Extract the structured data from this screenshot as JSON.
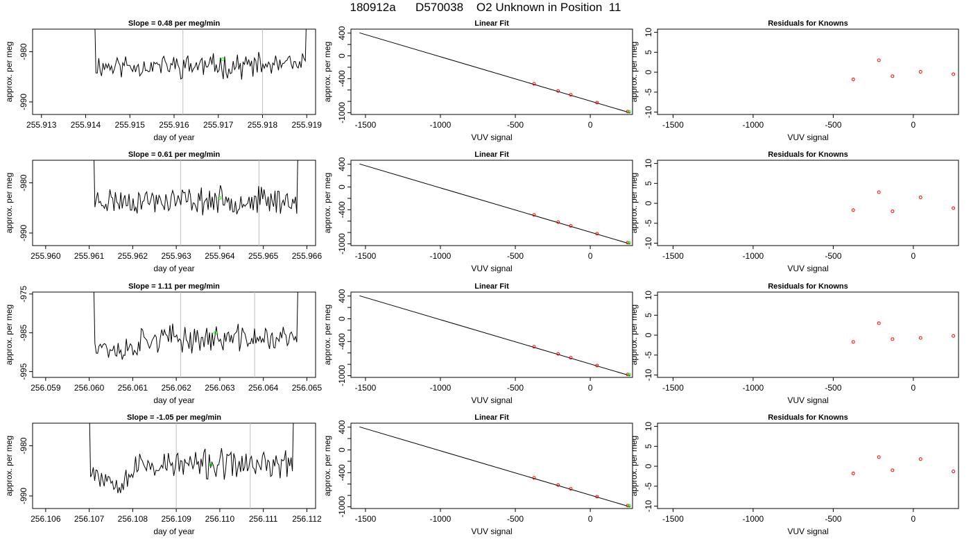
{
  "figure": {
    "title": "180912a      D570038    O2 Unknown in Position  11"
  },
  "chart_data": [
    {
      "type": "line",
      "row": 0,
      "title": "Slope =  0.48  per meg/min",
      "xlabel": "day of year",
      "ylabel": "approx. per meg",
      "xlim": [
        255.9128,
        255.9192
      ],
      "ylim": [
        -992.5,
        -975.5
      ],
      "xticks": [
        255.913,
        255.914,
        255.915,
        255.916,
        255.917,
        255.918,
        255.919
      ],
      "xtick_labels": [
        "255.913",
        "255.914",
        "255.915",
        "255.916",
        "255.917",
        "255.918",
        "255.919"
      ],
      "yticks": [
        -980,
        -990
      ],
      "ytick_labels": [
        "-980",
        "-990"
      ],
      "vlines": [
        255.9162,
        255.918
      ],
      "x_start": 255.9142,
      "x_end": 255.919,
      "seed": 11,
      "level": -982.8,
      "amp": 1.8,
      "vshape": "base",
      "marker": {
        "x": 255.9171,
        "y": -981.5
      }
    },
    {
      "type": "scatter",
      "row": 0,
      "title": "Linear Fit",
      "xlabel": "VUV signal",
      "ylabel": "approx. per meg",
      "xlim": [
        -1597,
        282
      ],
      "ylim": [
        -1030,
        470
      ],
      "xticks": [
        -1500,
        -1000,
        -500,
        0
      ],
      "xtick_labels": [
        "-1500",
        "-1000",
        "-500",
        "0"
      ],
      "yticks": [
        400,
        0,
        -400,
        -1000
      ],
      "ytick_labels": [
        "400",
        "0",
        "-400",
        "-1000"
      ],
      "fit_line": {
        "x1": -1540,
        "y1": 405,
        "x2": 265,
        "y2": -1000
      },
      "points": [
        {
          "x": -375,
          "y": -491
        },
        {
          "x": -215,
          "y": -617
        },
        {
          "x": -130,
          "y": -684
        },
        {
          "x": 45,
          "y": -822
        },
        {
          "x": 250,
          "y": -980
        }
      ],
      "unknown": {
        "x": 260,
        "y": -982
      }
    },
    {
      "type": "scatter",
      "row": 0,
      "title": "Residuals for Knowns",
      "xlabel": "VUV signal",
      "ylabel": "approx. per meg",
      "xlim": [
        -1597,
        282
      ],
      "ylim": [
        -10.6,
        10.8
      ],
      "xticks": [
        -1500,
        -1000,
        -500,
        0
      ],
      "xtick_labels": [
        "-1500",
        "-1000",
        "-500",
        "0"
      ],
      "yticks": [
        10,
        5,
        0,
        -5,
        -10
      ],
      "ytick_labels": [
        "10",
        "5",
        "0",
        "-5",
        "-10"
      ],
      "points": [
        {
          "x": -375,
          "y": -1.8
        },
        {
          "x": -215,
          "y": 3.0
        },
        {
          "x": -130,
          "y": -1.0
        },
        {
          "x": 45,
          "y": 0.1
        },
        {
          "x": 250,
          "y": -0.5
        }
      ]
    },
    {
      "type": "line",
      "row": 1,
      "title": "Slope =  0.61  per meg/min",
      "xlabel": "day of year",
      "ylabel": "approx. per meg",
      "xlim": [
        255.9597,
        255.9662
      ],
      "ylim": [
        -992.5,
        -975.5
      ],
      "xticks": [
        255.96,
        255.961,
        255.962,
        255.963,
        255.964,
        255.965,
        255.966
      ],
      "xtick_labels": [
        "255.960",
        "255.961",
        "255.962",
        "255.963",
        "255.964",
        "255.965",
        "255.966"
      ],
      "yticks": [
        -980,
        -990
      ],
      "ytick_labels": [
        "-980",
        "-990"
      ],
      "vlines": [
        255.9631,
        255.9649
      ],
      "x_start": 255.9611,
      "x_end": 255.9658,
      "seed": 23,
      "level": -983.5,
      "amp": 2.0,
      "vshape": "base",
      "marker": {
        "x": 255.964,
        "y": -983.0
      }
    },
    {
      "type": "scatter",
      "row": 1,
      "title": "Linear Fit",
      "xlabel": "VUV signal",
      "ylabel": "approx. per meg",
      "xlim": [
        -1597,
        282
      ],
      "ylim": [
        -1030,
        470
      ],
      "xticks": [
        -1500,
        -1000,
        -500,
        0
      ],
      "xtick_labels": [
        "-1500",
        "-1000",
        "-500",
        "0"
      ],
      "yticks": [
        400,
        0,
        -400,
        -1000
      ],
      "ytick_labels": [
        "400",
        "0",
        "-400",
        "-1000"
      ],
      "fit_line": {
        "x1": -1540,
        "y1": 405,
        "x2": 265,
        "y2": -1000
      },
      "points": [
        {
          "x": -375,
          "y": -491
        },
        {
          "x": -215,
          "y": -617
        },
        {
          "x": -130,
          "y": -684
        },
        {
          "x": 45,
          "y": -822
        },
        {
          "x": 250,
          "y": -980
        }
      ],
      "unknown": {
        "x": 260,
        "y": -982
      }
    },
    {
      "type": "scatter",
      "row": 1,
      "title": "Residuals for Knowns",
      "xlabel": "VUV signal",
      "ylabel": "approx. per meg",
      "xlim": [
        -1597,
        282
      ],
      "ylim": [
        -10.6,
        10.8
      ],
      "xticks": [
        -1500,
        -1000,
        -500,
        0
      ],
      "xtick_labels": [
        "-1500",
        "-1000",
        "-500",
        "0"
      ],
      "yticks": [
        10,
        5,
        0,
        -5,
        -10
      ],
      "ytick_labels": [
        "10",
        "5",
        "0",
        "-5",
        "-10"
      ],
      "points": [
        {
          "x": -375,
          "y": -1.7
        },
        {
          "x": -215,
          "y": 2.8
        },
        {
          "x": -130,
          "y": -2.0
        },
        {
          "x": 45,
          "y": 1.5
        },
        {
          "x": 250,
          "y": -1.2
        }
      ]
    },
    {
      "type": "line",
      "row": 2,
      "title": "Slope =  1.11  per meg/min",
      "xlabel": "day of year",
      "ylabel": "approx. per meg",
      "xlim": [
        256.0587,
        256.0652
      ],
      "ylim": [
        -996.5,
        -974.5
      ],
      "xticks": [
        256.059,
        256.06,
        256.061,
        256.062,
        256.063,
        256.064,
        256.065
      ],
      "xtick_labels": [
        "256.059",
        "256.060",
        "256.061",
        "256.062",
        "256.063",
        "256.064",
        "256.065"
      ],
      "yticks": [
        -975,
        -985,
        -995
      ],
      "ytick_labels": [
        "-975",
        "-985",
        "-995"
      ],
      "vlines": [
        256.0621,
        256.0638
      ],
      "x_start": 256.0601,
      "x_end": 256.0648,
      "seed": 37,
      "level": -986.5,
      "amp": 2.6,
      "vshape": "dip",
      "marker": {
        "x": 256.0629,
        "y": -985.0
      }
    },
    {
      "type": "scatter",
      "row": 2,
      "title": "Linear Fit",
      "xlabel": "VUV signal",
      "ylabel": "approx. per meg",
      "xlim": [
        -1597,
        282
      ],
      "ylim": [
        -1030,
        470
      ],
      "xticks": [
        -1500,
        -1000,
        -500,
        0
      ],
      "xtick_labels": [
        "-1500",
        "-1000",
        "-500",
        "0"
      ],
      "yticks": [
        400,
        0,
        -400,
        -1000
      ],
      "ytick_labels": [
        "400",
        "0",
        "-400",
        "-1000"
      ],
      "fit_line": {
        "x1": -1540,
        "y1": 405,
        "x2": 265,
        "y2": -1000
      },
      "points": [
        {
          "x": -375,
          "y": -491
        },
        {
          "x": -215,
          "y": -617
        },
        {
          "x": -130,
          "y": -684
        },
        {
          "x": 45,
          "y": -822
        },
        {
          "x": 250,
          "y": -980
        }
      ],
      "unknown": {
        "x": 260,
        "y": -982
      }
    },
    {
      "type": "scatter",
      "row": 2,
      "title": "Residuals for Knowns",
      "xlabel": "VUV signal",
      "ylabel": "approx. per meg",
      "xlim": [
        -1597,
        282
      ],
      "ylim": [
        -10.6,
        10.8
      ],
      "xticks": [
        -1500,
        -1000,
        -500,
        0
      ],
      "xtick_labels": [
        "-1500",
        "-1000",
        "-500",
        "0"
      ],
      "yticks": [
        10,
        5,
        0,
        -5,
        -10
      ],
      "ytick_labels": [
        "10",
        "5",
        "0",
        "-5",
        "-10"
      ],
      "points": [
        {
          "x": -375,
          "y": -1.7
        },
        {
          "x": -215,
          "y": 3.0
        },
        {
          "x": -130,
          "y": -1.0
        },
        {
          "x": 45,
          "y": -0.7
        },
        {
          "x": 250,
          "y": -0.2
        }
      ]
    },
    {
      "type": "line",
      "row": 3,
      "title": "Slope =  -1.05  per meg/min",
      "xlabel": "day of year",
      "ylabel": "approx. per meg",
      "xlim": [
        256.1057,
        256.1122
      ],
      "ylim": [
        -992.5,
        -975.5
      ],
      "xticks": [
        256.106,
        256.107,
        256.108,
        256.109,
        256.11,
        256.111,
        256.112
      ],
      "xtick_labels": [
        "256.106",
        "256.107",
        "256.108",
        "256.109",
        "256.110",
        "256.111",
        "256.112"
      ],
      "yticks": [
        -980,
        -990
      ],
      "ytick_labels": [
        "-980",
        "-990"
      ],
      "vlines": [
        256.109,
        256.1107
      ],
      "x_start": 256.107,
      "x_end": 256.1117,
      "seed": 53,
      "level": -983.8,
      "amp": 2.2,
      "vshape": "dip",
      "marker": {
        "x": 256.1098,
        "y": -983.8
      }
    },
    {
      "type": "scatter",
      "row": 3,
      "title": "Linear Fit",
      "xlabel": "VUV signal",
      "ylabel": "approx. per meg",
      "xlim": [
        -1597,
        282
      ],
      "ylim": [
        -1030,
        470
      ],
      "xticks": [
        -1500,
        -1000,
        -500,
        0
      ],
      "xtick_labels": [
        "-1500",
        "-1000",
        "-500",
        "0"
      ],
      "yticks": [
        400,
        0,
        -400,
        -1000
      ],
      "ytick_labels": [
        "400",
        "0",
        "-400",
        "-1000"
      ],
      "fit_line": {
        "x1": -1540,
        "y1": 405,
        "x2": 265,
        "y2": -1000
      },
      "points": [
        {
          "x": -375,
          "y": -491
        },
        {
          "x": -215,
          "y": -617
        },
        {
          "x": -130,
          "y": -684
        },
        {
          "x": 45,
          "y": -822
        },
        {
          "x": 250,
          "y": -980
        }
      ],
      "unknown": {
        "x": 260,
        "y": -982
      }
    },
    {
      "type": "scatter",
      "row": 3,
      "title": "Residuals for Knowns",
      "xlabel": "VUV signal",
      "ylabel": "approx. per meg",
      "xlim": [
        -1597,
        282
      ],
      "ylim": [
        -10.6,
        10.8
      ],
      "xticks": [
        -1500,
        -1000,
        -500,
        0
      ],
      "xtick_labels": [
        "-1500",
        "-1000",
        "-500",
        "0"
      ],
      "yticks": [
        10,
        5,
        0,
        -5,
        -10
      ],
      "ytick_labels": [
        "10",
        "5",
        "0",
        "-5",
        "-10"
      ],
      "points": [
        {
          "x": -375,
          "y": -1.8
        },
        {
          "x": -215,
          "y": 2.3
        },
        {
          "x": -130,
          "y": -1.0
        },
        {
          "x": 45,
          "y": 1.8
        },
        {
          "x": 250,
          "y": -1.3
        }
      ]
    }
  ],
  "colors": {
    "line": "#000000",
    "vline": "#bebebe",
    "known_points": "#ff0000",
    "unknown_point": "#00ff00"
  }
}
